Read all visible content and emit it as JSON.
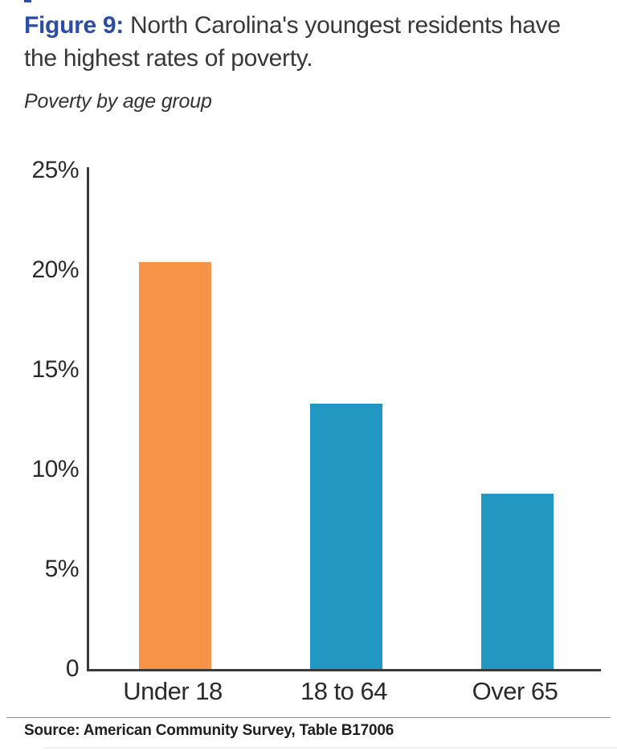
{
  "figure": {
    "label": "Figure 9:",
    "title_rest": " North Carolina's youngest residents have the highest rates of poverty.",
    "subtitle": "Poverty by age group",
    "source": "Source: American Community Survey, Table B17006"
  },
  "colors": {
    "accent_blue": "#2B4EA2",
    "bar_orange": "#F79346",
    "bar_blue": "#2197C2",
    "axis": "#3A3A3A",
    "text_dark": "#383838"
  },
  "chart_data": {
    "type": "bar",
    "title": "Poverty by age group",
    "categories": [
      "Under 18",
      "18 to 64",
      "Over 65"
    ],
    "values": [
      20.4,
      13.3,
      8.8
    ],
    "bar_colors": [
      "#F79346",
      "#2197C2",
      "#2197C2"
    ],
    "xlabel": "",
    "ylabel": "",
    "ylim": [
      0,
      25
    ],
    "yticks": [
      0,
      5,
      10,
      15,
      20,
      25
    ],
    "ytick_labels": [
      "0",
      "5%",
      "10%",
      "15%",
      "20%",
      "25%"
    ],
    "grid": false,
    "legend": "none",
    "value_unit": "percent"
  }
}
